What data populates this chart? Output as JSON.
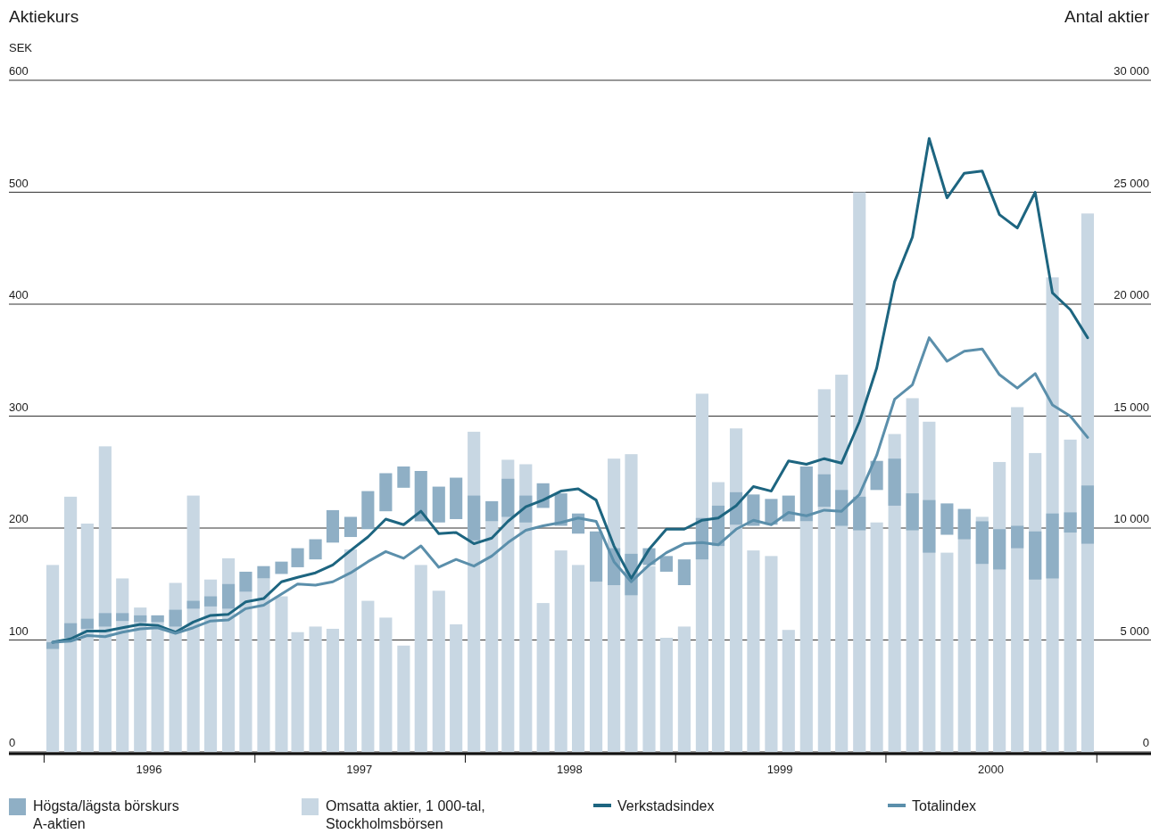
{
  "chart_data": {
    "type": "bar",
    "ylabel": "Aktiekurs",
    "y2label": "Antal aktier",
    "annotations": [
      "SEK"
    ],
    "x": [
      "1996-01-16",
      "1996-02-16",
      "1996-03-16",
      "1996-04-16",
      "1996-05-16",
      "1996-06-16",
      "1996-07-16",
      "1996-08-16",
      "1996-09-16",
      "1996-10-16",
      "1996-11-16",
      "1996-12-16",
      "1997-01-16",
      "1997-02-16",
      "1997-03-16",
      "1997-04-16",
      "1997-05-16",
      "1997-06-16",
      "1997-07-16",
      "1997-08-16",
      "1997-09-16",
      "1997-10-16",
      "1997-11-16",
      "1997-12-16",
      "1998-01-16",
      "1998-02-16",
      "1998-03-16",
      "1998-04-16",
      "1998-05-16",
      "1998-06-16",
      "1998-07-16",
      "1998-08-16",
      "1998-09-16",
      "1998-10-16",
      "1998-11-16",
      "1998-12-16",
      "1999-01-16",
      "1999-02-16",
      "1999-03-16",
      "1999-04-16",
      "1999-05-16",
      "1999-06-16",
      "1999-07-16",
      "1999-08-16",
      "1999-09-16",
      "1999-10-16",
      "1999-11-16",
      "1999-12-16",
      "2000-01-16",
      "2000-02-16",
      "2000-03-16",
      "2000-04-16",
      "2000-05-16",
      "2000-06-16",
      "2000-07-16",
      "2000-08-16",
      "2000-09-16",
      "2000-10-16",
      "2000-11-16",
      "2000-12-16"
    ],
    "xlim": [
      "1995-11-01",
      "2001-04-05"
    ],
    "xticks": [
      {
        "value": "1996-01",
        "label": null
      },
      {
        "value": "1996-07",
        "label": "1996"
      },
      {
        "value": "1997-01",
        "label": null
      },
      {
        "value": "1997-07",
        "label": "1997"
      },
      {
        "value": "1998-01",
        "label": null
      },
      {
        "value": "1998-07",
        "label": "1998"
      },
      {
        "value": "1999-01",
        "label": null
      },
      {
        "value": "1999-07",
        "label": "1999"
      },
      {
        "value": "2000-01",
        "label": null
      },
      {
        "value": "2000-07",
        "label": "2000"
      },
      {
        "value": "2001-01",
        "label": null
      }
    ],
    "ylim": [
      0,
      600
    ],
    "yticks": [
      0,
      100,
      200,
      300,
      400,
      500,
      600
    ],
    "y2lim": [
      0,
      30000
    ],
    "y2ticks": [
      0,
      {
        "value": 5000,
        "label": "5 000"
      },
      {
        "value": 10000,
        "label": "10 000"
      },
      {
        "value": 15000,
        "label": "15 000"
      },
      {
        "value": 20000,
        "label": "20 000"
      },
      {
        "value": 25000,
        "label": "25 000"
      },
      {
        "value": 30000,
        "label": "30 000"
      }
    ],
    "grid": "y",
    "legend": "bottom",
    "series": [
      {
        "name": "Högsta/lägsta börskurs A-aktien",
        "color": "#8fafc5",
        "base": [
          92,
          102,
          110,
          112,
          117,
          116,
          116,
          112,
          128,
          130,
          128,
          143,
          155,
          159,
          165,
          172,
          187,
          192,
          199,
          215,
          236,
          206,
          205,
          208,
          189,
          206,
          210,
          205,
          218,
          202,
          195,
          152,
          149,
          140,
          167,
          161,
          149,
          172,
          184,
          203,
          202,
          203,
          206,
          206,
          219,
          202,
          198,
          234,
          220,
          198,
          178,
          194,
          190,
          168,
          163,
          182,
          154,
          155,
          196,
          186
        ],
        "values": [
          6,
          13,
          9,
          12,
          7,
          6,
          6,
          15,
          7,
          9,
          22,
          18,
          11,
          11,
          17,
          18,
          29,
          18,
          34,
          34,
          19,
          45,
          32,
          37,
          40,
          18,
          34,
          24,
          22,
          29,
          18,
          45,
          33,
          37,
          15,
          14,
          23,
          37,
          36,
          29,
          28,
          23,
          23,
          49,
          29,
          32,
          30,
          26,
          42,
          33,
          47,
          28,
          27,
          38,
          36,
          20,
          43,
          58,
          18,
          52
        ]
      },
      {
        "name": "Omsatta aktier, 1 000-tal, Stockholmsbörsen",
        "axis": "y2",
        "color": "#c8d7e3",
        "values": [
          8350,
          11400,
          10200,
          13650,
          7750,
          6450,
          6100,
          7550,
          11450,
          7700,
          8650,
          7150,
          7750,
          6950,
          5350,
          5600,
          5500,
          9050,
          6750,
          6000,
          4750,
          8350,
          7200,
          5700,
          14300,
          10300,
          13050,
          12850,
          6650,
          9000,
          8350,
          7600,
          13100,
          13300,
          8300,
          5100,
          5600,
          16000,
          12050,
          14450,
          9000,
          8750,
          5450,
          10300,
          16200,
          16850,
          25000,
          10250,
          14200,
          15800,
          14750,
          8900,
          10850,
          10500,
          12950,
          15400,
          13350,
          21200,
          13950,
          24050
        ]
      },
      {
        "name": "Verkstadsindex",
        "type": "line",
        "color": "#1d6580",
        "values": [
          98,
          101,
          108,
          108,
          111,
          114,
          113,
          107,
          116,
          122,
          123,
          134,
          137,
          152,
          156,
          160,
          167,
          180,
          192,
          208,
          203,
          215,
          195,
          196,
          186,
          191,
          206,
          219,
          225,
          233,
          235,
          225,
          184,
          155,
          181,
          199,
          199,
          207,
          209,
          220,
          237,
          233,
          260,
          257,
          262,
          258,
          295,
          343,
          420,
          460,
          548,
          495,
          517,
          519,
          480,
          468,
          500,
          410,
          395,
          370
        ]
      },
      {
        "name": "Totalindex",
        "type": "line",
        "color": "#5b8fab",
        "values": [
          98,
          99,
          104,
          103,
          107,
          110,
          111,
          106,
          111,
          117,
          118,
          128,
          131,
          141,
          150,
          149,
          152,
          160,
          170,
          179,
          173,
          184,
          165,
          172,
          166,
          175,
          187,
          198,
          202,
          205,
          209,
          206,
          170,
          152,
          167,
          178,
          186,
          187,
          185,
          199,
          207,
          203,
          214,
          211,
          216,
          215,
          230,
          265,
          315,
          328,
          370,
          349,
          358,
          360,
          337,
          325,
          338,
          310,
          300,
          281
        ]
      }
    ]
  }
}
